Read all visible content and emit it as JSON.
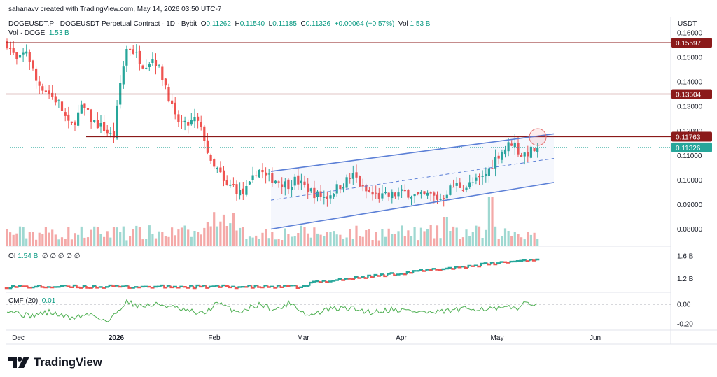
{
  "header": {
    "credit": "sahanavv created with TradingView.com, May 14, 2026 03:50 UTC-7",
    "symbol": "DOGEUSDT.P · DOGEUSDT Perpetual Contract · 1D · Bybit",
    "o_label": "O",
    "o_value": "0.11262",
    "h_label": "H",
    "h_value": "0.11540",
    "l_label": "L",
    "l_value": "0.11185",
    "c_label": "C",
    "c_value": "0.11326",
    "change": "+0.00064 (+0.57%)",
    "vol_label": "Vol",
    "vol_value": "1.53 B",
    "vol_doge_label": "Vol · DOGE",
    "vol_doge_value": "1.53 B"
  },
  "currency": "USDT",
  "oi_pane": {
    "label": "OI",
    "value": "1.54 B",
    "placeholders": "∅ ∅ ∅ ∅ ∅"
  },
  "cmf_pane": {
    "label": "CMF (20)",
    "value": "0.01"
  },
  "brand": {
    "name": "TradingView"
  },
  "colors": {
    "up": "#26a69a",
    "down": "#ef5350",
    "vol_up": "#9fd8d1",
    "vol_down": "#f4a9a8",
    "level": "#8b1a1a",
    "channel": "#5b7fd6",
    "cmf": "#4caf50",
    "last_price": "#26a69a"
  },
  "chart_data": {
    "type": "candlestick",
    "x_ticks": [
      "Dec",
      "2026",
      "Feb",
      "Mar",
      "Apr",
      "May",
      "Jun"
    ],
    "y_ticks": [
      "0.16000",
      "0.15000",
      "0.14000",
      "0.13000",
      "0.12000",
      "0.11000",
      "0.10000",
      "0.09000",
      "0.08000"
    ],
    "ylim": [
      0.0765,
      0.161
    ],
    "horizontal_levels": [
      {
        "value": 0.15597,
        "label": "0.15597"
      },
      {
        "value": 0.13504,
        "label": "0.13504"
      },
      {
        "value": 0.11763,
        "label": "0.11763"
      }
    ],
    "last_price": {
      "value": 0.11326,
      "label": "0.11326"
    },
    "channel": {
      "upper": [
        [
          0.1035,
          0.1188
        ]
      ],
      "lower": [
        [
          0.08,
          0.099
        ]
      ],
      "mid": [
        [
          0.0918,
          0.1088
        ]
      ]
    },
    "oi_ticks": [
      "1.6 B",
      "1.2 B"
    ],
    "cmf_ticks": [
      "0.00",
      "-0.20"
    ],
    "cmf_last": 0.01
  }
}
